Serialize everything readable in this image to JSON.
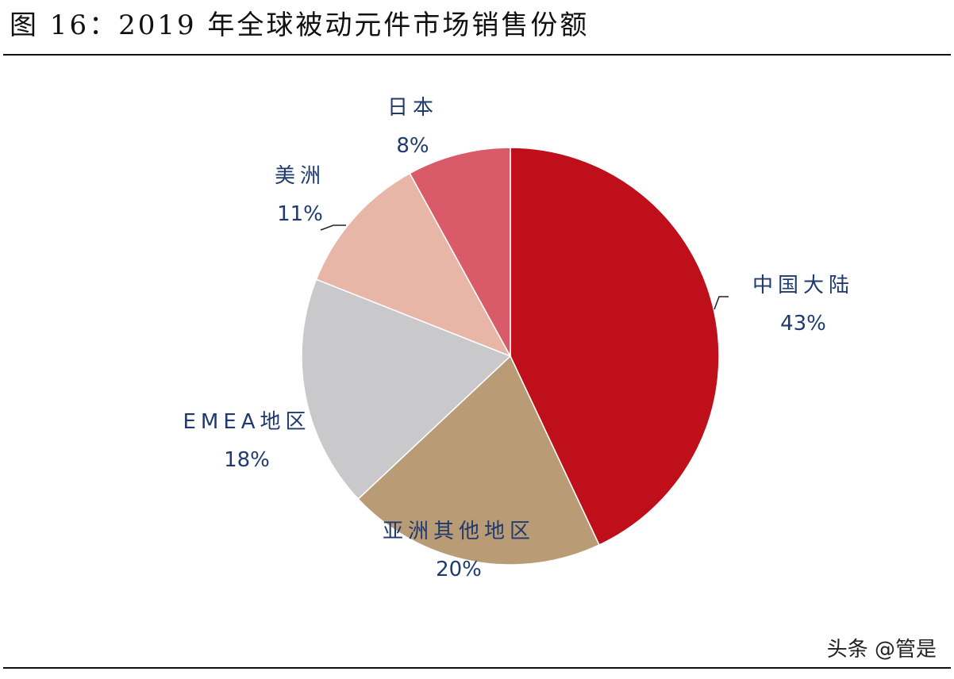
{
  "chart_data": {
    "type": "pie",
    "title": "图 16：2019 年全球被动元件市场销售份额",
    "categories": [
      "中国大陆",
      "亚洲其他地区",
      "EMEA地区",
      "美洲",
      "日本"
    ],
    "values": [
      43,
      20,
      18,
      11,
      8
    ],
    "value_labels": [
      "43%",
      "20%",
      "18%",
      "11%",
      "8%"
    ],
    "colors": [
      "#bf0f1b",
      "#b99b75",
      "#c9c9cb",
      "#e8b6a6",
      "#d95a69"
    ]
  },
  "watermark": "头条 @管是"
}
